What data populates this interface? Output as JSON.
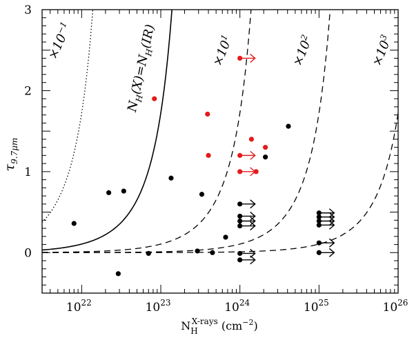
{
  "chart_data": {
    "type": "scatter",
    "xscale": "log",
    "xlim": [
      3.16e+21,
      1e+26
    ],
    "ylim": [
      -0.5,
      3.0
    ],
    "xlabel": {
      "main": "N",
      "sub": "H",
      "sup": "X-rays",
      "unit": " (cm",
      "unit_sup": "−2",
      "close": ")"
    },
    "ylabel": {
      "main": "τ",
      "sub": "9.7μm"
    },
    "x_ticks": [
      {
        "value": 1e+22,
        "base": "10",
        "exp": "22"
      },
      {
        "value": 1e+23,
        "base": "10",
        "exp": "23"
      },
      {
        "value": 1e+24,
        "base": "10",
        "exp": "24"
      },
      {
        "value": 1e+25,
        "base": "10",
        "exp": "25"
      },
      {
        "value": 1e+26,
        "base": "10",
        "exp": "26"
      }
    ],
    "y_ticks": [
      {
        "value": 0,
        "label": "0"
      },
      {
        "value": 1,
        "label": "1"
      },
      {
        "value": 2,
        "label": "2"
      },
      {
        "value": 3,
        "label": "3"
      }
    ],
    "curves": [
      {
        "name": "×10−1",
        "style": "dotted",
        "factor": 0.1
      },
      {
        "name": "NH(X)=NH(IR)",
        "style": "solid",
        "factor": 1
      },
      {
        "name": "×101",
        "style": "dashed",
        "factor": 10
      },
      {
        "name": "×102",
        "style": "dashed",
        "factor": 100
      },
      {
        "name": "×103",
        "style": "dashed",
        "factor": 1000
      }
    ],
    "curve_labels": [
      {
        "base": "×10",
        "sup": "−1"
      },
      {
        "base": "N",
        "sub": "H",
        "mid": "(X)=N",
        "sub2": "H",
        "tail": "(IR)"
      },
      {
        "base": "×10",
        "sup": "1"
      },
      {
        "base": "×10",
        "sup": "2"
      },
      {
        "base": "×10",
        "sup": "3"
      }
    ],
    "points_black": [
      [
        8e+21,
        0.36
      ],
      [
        2.2e+22,
        0.74
      ],
      [
        2.9e+22,
        -0.26
      ],
      [
        3.4e+22,
        0.76
      ],
      [
        7e+22,
        -0.01
      ],
      [
        1.35e+23,
        0.92
      ],
      [
        2.9e+23,
        0.02
      ],
      [
        3.3e+23,
        0.72
      ],
      [
        4.5e+23,
        0.0
      ],
      [
        6.6e+23,
        0.19
      ],
      [
        2.1e+24,
        1.18
      ],
      [
        4.1e+24,
        1.56
      ]
    ],
    "points_red": [
      [
        8.3e+22,
        1.9
      ],
      [
        3.9e+23,
        1.71
      ],
      [
        4e+23,
        1.2
      ],
      [
        1.4e+24,
        1.4
      ],
      [
        1.6e+24,
        1.0
      ],
      [
        2.1e+24,
        1.3
      ]
    ],
    "lower_limits_black": [
      [
        1e+24,
        0.6
      ],
      [
        1e+24,
        0.45
      ],
      [
        1e+24,
        0.39
      ],
      [
        1e+24,
        0.33
      ],
      [
        1e+24,
        -0.01
      ],
      [
        1e+24,
        -0.09
      ],
      [
        1e+25,
        0.49
      ],
      [
        1e+25,
        0.44
      ],
      [
        1e+25,
        0.39
      ],
      [
        1e+25,
        0.34
      ],
      [
        1e+25,
        0.12
      ],
      [
        1e+25,
        0.0
      ]
    ],
    "lower_limits_red": [
      [
        1e+24,
        2.4
      ],
      [
        1e+24,
        1.2
      ],
      [
        1e+24,
        1.0
      ]
    ],
    "colors": {
      "black": "#000000",
      "red": "#e41a1c"
    }
  }
}
